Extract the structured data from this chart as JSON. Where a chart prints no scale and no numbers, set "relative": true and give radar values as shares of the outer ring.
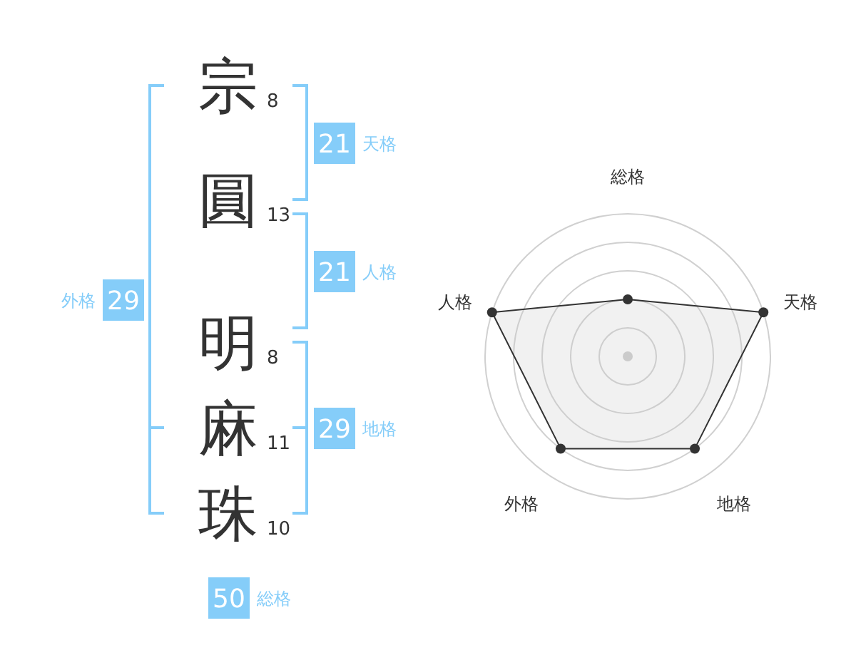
{
  "chart_data": [
    {
      "type": "other",
      "categories": [
        "宗",
        "圓",
        "明",
        "麻",
        "珠"
      ],
      "values": [
        8,
        13,
        8,
        11,
        10
      ],
      "data_labels": true,
      "color": "#85cdf9",
      "annotations": [
        "21",
        "天格",
        "21",
        "人格",
        "29",
        "地格",
        "29",
        "外格",
        "50",
        "総格"
      ]
    },
    {
      "type": "radar",
      "categories": [
        "総格",
        "天格",
        "地格",
        "外格",
        "人格"
      ],
      "relative": true,
      "grid": true,
      "marker": "circle",
      "series": [
        {
          "color": "#333333",
          "values": [
            0.4,
            1,
            0.8,
            0.8,
            1
          ]
        }
      ]
    }
  ]
}
